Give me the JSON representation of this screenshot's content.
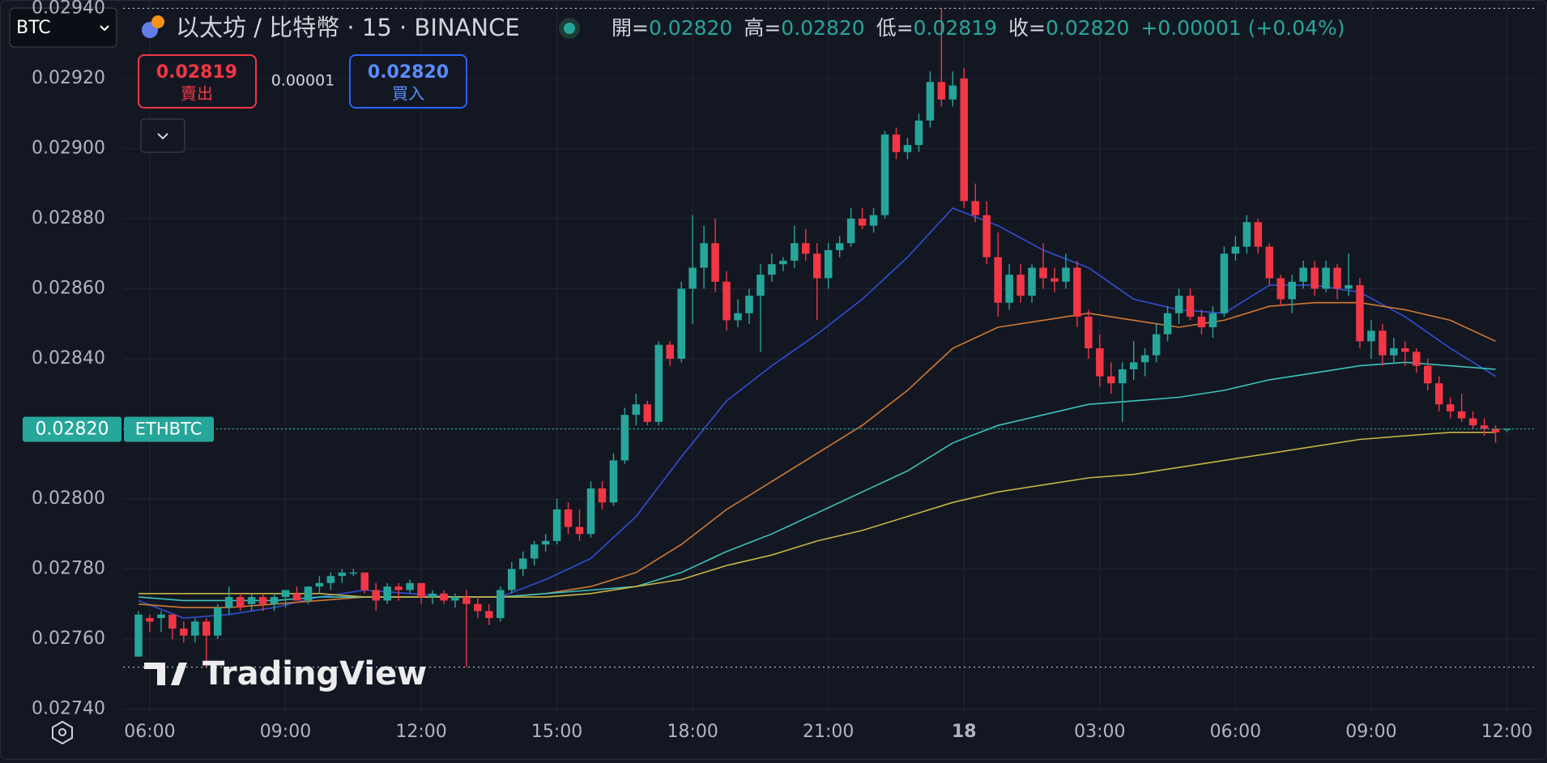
{
  "header": {
    "symbol": "BTC",
    "title": "以太坊 / 比特幣 · 15 · BINANCE",
    "legend": [
      {
        "label": "開=",
        "value": "0.02820"
      },
      {
        "label": "高=",
        "value": "0.02820"
      },
      {
        "label": "低=",
        "value": "0.02819"
      },
      {
        "label": "收=",
        "value": "0.02820"
      }
    ],
    "change": "+0.00001 (+0.04%)"
  },
  "trade": {
    "sell_price": "0.02819",
    "sell_label": "賣出",
    "spread": "0.00001",
    "buy_price": "0.02820",
    "buy_label": "買入"
  },
  "watermark": "TradingView",
  "chart_data": {
    "type": "candlestick",
    "up_color": "#26a69a",
    "down_color": "#f23645",
    "grid": true,
    "ylim": [
      0.027392,
      0.029424
    ],
    "yticks": [
      {
        "value": 0.0294,
        "label": "0.02940"
      },
      {
        "value": 0.0292,
        "label": "0.02920"
      },
      {
        "value": 0.029,
        "label": "0.02900"
      },
      {
        "value": 0.0288,
        "label": "0.02880"
      },
      {
        "value": 0.0286,
        "label": "0.02860"
      },
      {
        "value": 0.0284,
        "label": "0.02840"
      },
      {
        "value": 0.0282,
        "label": "0.02820"
      },
      {
        "value": 0.028,
        "label": "0.02800"
      },
      {
        "value": 0.0278,
        "label": "0.02780"
      },
      {
        "value": 0.0276,
        "label": "0.02760"
      },
      {
        "value": 0.0274,
        "label": "0.02740"
      }
    ],
    "xlim": [
      -1.36,
      123.4
    ],
    "xticks": [
      {
        "value": 1,
        "label": "06:00"
      },
      {
        "value": 13,
        "label": "09:00"
      },
      {
        "value": 25,
        "label": "12:00"
      },
      {
        "value": 37,
        "label": "15:00"
      },
      {
        "value": 49,
        "label": "18:00"
      },
      {
        "value": 61,
        "label": "21:00"
      },
      {
        "value": 73,
        "label": "18",
        "bold": true
      },
      {
        "value": 85,
        "label": "03:00"
      },
      {
        "value": 97,
        "label": "06:00"
      },
      {
        "value": 109,
        "label": "09:00"
      },
      {
        "value": 121,
        "label": "12:00"
      }
    ],
    "x": [
      0,
      1,
      2,
      3,
      4,
      5,
      6,
      7,
      8,
      9,
      10,
      11,
      12,
      13,
      14,
      15,
      16,
      17,
      18,
      19,
      20,
      21,
      22,
      23,
      24,
      25,
      26,
      27,
      28,
      29,
      30,
      31,
      32,
      33,
      34,
      35,
      36,
      37,
      38,
      39,
      40,
      41,
      42,
      43,
      44,
      45,
      46,
      47,
      48,
      49,
      50,
      51,
      52,
      53,
      54,
      55,
      56,
      57,
      58,
      59,
      60,
      61,
      62,
      63,
      64,
      65,
      66,
      67,
      68,
      69,
      70,
      71,
      72,
      73,
      74,
      75,
      76,
      77,
      78,
      79,
      80,
      81,
      82,
      83,
      84,
      85,
      86,
      87,
      88,
      89,
      90,
      91,
      92,
      93,
      94,
      95,
      96,
      97,
      98,
      99,
      100,
      101,
      102,
      103,
      104,
      105,
      106,
      107,
      108,
      109,
      110,
      111,
      112,
      113,
      114,
      115,
      116,
      117,
      118,
      119,
      120,
      121
    ],
    "ohlc": [
      [
        0.02755,
        0.02768,
        0.02755,
        0.02767
      ],
      [
        0.02766,
        0.02767,
        0.02762,
        0.02765
      ],
      [
        0.02766,
        0.02768,
        0.02762,
        0.02767
      ],
      [
        0.02767,
        0.02767,
        0.0276,
        0.02763
      ],
      [
        0.02763,
        0.02765,
        0.02759,
        0.02761
      ],
      [
        0.02761,
        0.02766,
        0.02759,
        0.02765
      ],
      [
        0.02765,
        0.02766,
        0.02752,
        0.02761
      ],
      [
        0.02761,
        0.0277,
        0.0276,
        0.02769
      ],
      [
        0.02769,
        0.02775,
        0.02767,
        0.02772
      ],
      [
        0.02772,
        0.02773,
        0.02768,
        0.02769
      ],
      [
        0.0277,
        0.02773,
        0.02768,
        0.02772
      ],
      [
        0.02772,
        0.02773,
        0.02768,
        0.0277
      ],
      [
        0.0277,
        0.02773,
        0.02768,
        0.02772
      ],
      [
        0.02772,
        0.02774,
        0.02769,
        0.02774
      ],
      [
        0.02773,
        0.02775,
        0.02771,
        0.02771
      ],
      [
        0.02771,
        0.02775,
        0.0277,
        0.02775
      ],
      [
        0.02775,
        0.02778,
        0.02773,
        0.02776
      ],
      [
        0.02776,
        0.02779,
        0.02774,
        0.02778
      ],
      [
        0.02778,
        0.0278,
        0.02776,
        0.02779
      ],
      [
        0.02779,
        0.0278,
        0.02778,
        0.02779
      ],
      [
        0.02779,
        0.02779,
        0.02773,
        0.02774
      ],
      [
        0.02774,
        0.02776,
        0.02768,
        0.02771
      ],
      [
        0.02771,
        0.02776,
        0.0277,
        0.02775
      ],
      [
        0.02775,
        0.02776,
        0.02771,
        0.02774
      ],
      [
        0.02774,
        0.02777,
        0.02773,
        0.02776
      ],
      [
        0.02776,
        0.02776,
        0.0277,
        0.02772
      ],
      [
        0.02772,
        0.02774,
        0.0277,
        0.02773
      ],
      [
        0.02773,
        0.02774,
        0.0277,
        0.02771
      ],
      [
        0.02771,
        0.02773,
        0.02769,
        0.02772
      ],
      [
        0.02772,
        0.02774,
        0.02752,
        0.0277
      ],
      [
        0.0277,
        0.02772,
        0.02766,
        0.02768
      ],
      [
        0.02768,
        0.0277,
        0.02764,
        0.02766
      ],
      [
        0.02766,
        0.02775,
        0.02765,
        0.02774
      ],
      [
        0.02774,
        0.02782,
        0.02773,
        0.0278
      ],
      [
        0.0278,
        0.02785,
        0.02778,
        0.02783
      ],
      [
        0.02783,
        0.02788,
        0.02781,
        0.02787
      ],
      [
        0.02787,
        0.0279,
        0.02785,
        0.02788
      ],
      [
        0.02788,
        0.028,
        0.02787,
        0.02797
      ],
      [
        0.02797,
        0.02799,
        0.0279,
        0.02792
      ],
      [
        0.02792,
        0.02797,
        0.02788,
        0.0279
      ],
      [
        0.0279,
        0.02805,
        0.02789,
        0.02803
      ],
      [
        0.02803,
        0.02805,
        0.02797,
        0.02799
      ],
      [
        0.02799,
        0.02813,
        0.02798,
        0.02811
      ],
      [
        0.02811,
        0.02826,
        0.0281,
        0.02824
      ],
      [
        0.02824,
        0.0283,
        0.02821,
        0.02827
      ],
      [
        0.02827,
        0.02828,
        0.02821,
        0.02822
      ],
      [
        0.02822,
        0.02845,
        0.02821,
        0.02844
      ],
      [
        0.02844,
        0.02845,
        0.02838,
        0.0284
      ],
      [
        0.0284,
        0.02862,
        0.02839,
        0.0286
      ],
      [
        0.0286,
        0.02881,
        0.0285,
        0.02866
      ],
      [
        0.02866,
        0.02878,
        0.0286,
        0.02873
      ],
      [
        0.02873,
        0.0288,
        0.02859,
        0.02862
      ],
      [
        0.02862,
        0.02865,
        0.02848,
        0.02851
      ],
      [
        0.02851,
        0.02857,
        0.02849,
        0.02853
      ],
      [
        0.02853,
        0.0286,
        0.0285,
        0.02858
      ],
      [
        0.02858,
        0.02867,
        0.02842,
        0.02864
      ],
      [
        0.02864,
        0.0287,
        0.02862,
        0.02867
      ],
      [
        0.02867,
        0.02869,
        0.02865,
        0.02868
      ],
      [
        0.02868,
        0.02878,
        0.02866,
        0.02873
      ],
      [
        0.02873,
        0.02877,
        0.02868,
        0.0287
      ],
      [
        0.0287,
        0.02873,
        0.02851,
        0.02863
      ],
      [
        0.02863,
        0.02873,
        0.0286,
        0.02871
      ],
      [
        0.02871,
        0.02875,
        0.02869,
        0.02873
      ],
      [
        0.02873,
        0.02883,
        0.02872,
        0.0288
      ],
      [
        0.0288,
        0.02883,
        0.02877,
        0.02878
      ],
      [
        0.02878,
        0.02883,
        0.02876,
        0.02881
      ],
      [
        0.02881,
        0.02905,
        0.0288,
        0.02904
      ],
      [
        0.02904,
        0.02906,
        0.02897,
        0.02899
      ],
      [
        0.02899,
        0.02903,
        0.02897,
        0.02901
      ],
      [
        0.02901,
        0.0291,
        0.02899,
        0.02908
      ],
      [
        0.02908,
        0.02922,
        0.02906,
        0.02919
      ],
      [
        0.02919,
        0.0294,
        0.02912,
        0.02914
      ],
      [
        0.02914,
        0.02922,
        0.02912,
        0.02918
      ],
      [
        0.0292,
        0.02923,
        0.02883,
        0.02885
      ],
      [
        0.02885,
        0.0289,
        0.02879,
        0.02881
      ],
      [
        0.02881,
        0.02885,
        0.02867,
        0.02869
      ],
      [
        0.02869,
        0.02876,
        0.02852,
        0.02856
      ],
      [
        0.02856,
        0.02867,
        0.02854,
        0.02864
      ],
      [
        0.02864,
        0.02867,
        0.02856,
        0.02858
      ],
      [
        0.02858,
        0.02867,
        0.02856,
        0.02866
      ],
      [
        0.02866,
        0.02873,
        0.0286,
        0.02863
      ],
      [
        0.02863,
        0.02866,
        0.02859,
        0.02862
      ],
      [
        0.02862,
        0.0287,
        0.0286,
        0.02866
      ],
      [
        0.02866,
        0.02868,
        0.02849,
        0.02852
      ],
      [
        0.02852,
        0.02854,
        0.0284,
        0.02843
      ],
      [
        0.02843,
        0.02847,
        0.02832,
        0.02835
      ],
      [
        0.02835,
        0.02839,
        0.0283,
        0.02833
      ],
      [
        0.02833,
        0.02839,
        0.02822,
        0.02837
      ],
      [
        0.02837,
        0.02845,
        0.02834,
        0.02839
      ],
      [
        0.02839,
        0.02843,
        0.02835,
        0.02841
      ],
      [
        0.02841,
        0.0285,
        0.02839,
        0.02847
      ],
      [
        0.02847,
        0.02855,
        0.02845,
        0.02853
      ],
      [
        0.02853,
        0.0286,
        0.0285,
        0.02858
      ],
      [
        0.02858,
        0.0286,
        0.02851,
        0.02852
      ],
      [
        0.02852,
        0.02854,
        0.02847,
        0.02849
      ],
      [
        0.02849,
        0.02855,
        0.02846,
        0.02853
      ],
      [
        0.02853,
        0.02872,
        0.02852,
        0.0287
      ],
      [
        0.0287,
        0.02875,
        0.02868,
        0.02872
      ],
      [
        0.02872,
        0.02881,
        0.0287,
        0.02879
      ],
      [
        0.02879,
        0.0288,
        0.0287,
        0.02872
      ],
      [
        0.02872,
        0.02873,
        0.02861,
        0.02863
      ],
      [
        0.02863,
        0.02864,
        0.02855,
        0.02857
      ],
      [
        0.02857,
        0.02864,
        0.02853,
        0.02862
      ],
      [
        0.02862,
        0.02868,
        0.0286,
        0.02866
      ],
      [
        0.02866,
        0.02868,
        0.02858,
        0.0286
      ],
      [
        0.0286,
        0.02868,
        0.02859,
        0.02866
      ],
      [
        0.02866,
        0.02867,
        0.02857,
        0.0286
      ],
      [
        0.0286,
        0.0287,
        0.02858,
        0.02861
      ],
      [
        0.02861,
        0.02863,
        0.02843,
        0.02845
      ],
      [
        0.02845,
        0.02851,
        0.0284,
        0.02848
      ],
      [
        0.02848,
        0.0285,
        0.02838,
        0.02841
      ],
      [
        0.02841,
        0.02846,
        0.02839,
        0.02843
      ],
      [
        0.02843,
        0.02845,
        0.02838,
        0.02842
      ],
      [
        0.02842,
        0.02843,
        0.02836,
        0.02838
      ],
      [
        0.02838,
        0.0284,
        0.02831,
        0.02833
      ],
      [
        0.02833,
        0.02835,
        0.02825,
        0.02827
      ],
      [
        0.02827,
        0.02829,
        0.02823,
        0.02825
      ],
      [
        0.02825,
        0.0283,
        0.02822,
        0.02823
      ],
      [
        0.02823,
        0.02825,
        0.0282,
        0.02821
      ],
      [
        0.02821,
        0.02823,
        0.02818,
        0.0282
      ],
      [
        0.0282,
        0.02821,
        0.02816,
        0.02819
      ],
      [
        0.0282,
        0.0282,
        0.02819,
        0.0282
      ]
    ],
    "series": [
      {
        "color": "#2f4fd6",
        "x": [
          0,
          4,
          8,
          12,
          16,
          20,
          24,
          28,
          32,
          36,
          40,
          44,
          48,
          52,
          56,
          60,
          64,
          68,
          72,
          76,
          80,
          84,
          88,
          92,
          96,
          100,
          104,
          108,
          112,
          116,
          120
        ],
        "values": [
          0.02771,
          0.02766,
          0.02767,
          0.02769,
          0.02772,
          0.02774,
          0.02773,
          0.02772,
          0.02772,
          0.02777,
          0.02783,
          0.02795,
          0.02812,
          0.02828,
          0.02838,
          0.02847,
          0.02857,
          0.02869,
          0.02883,
          0.02878,
          0.02871,
          0.02866,
          0.02857,
          0.02854,
          0.02853,
          0.02861,
          0.02861,
          0.02859,
          0.02852,
          0.02843,
          0.02835
        ]
      },
      {
        "color": "#d17a32",
        "x": [
          0,
          4,
          8,
          12,
          16,
          20,
          24,
          28,
          32,
          36,
          40,
          44,
          48,
          52,
          56,
          60,
          64,
          68,
          72,
          76,
          80,
          84,
          88,
          92,
          96,
          100,
          104,
          108,
          112,
          116,
          120
        ],
        "values": [
          0.0277,
          0.02769,
          0.02769,
          0.0277,
          0.02771,
          0.02772,
          0.02772,
          0.02772,
          0.02772,
          0.02773,
          0.02775,
          0.02779,
          0.02787,
          0.02797,
          0.02805,
          0.02813,
          0.02821,
          0.02831,
          0.02843,
          0.02849,
          0.02851,
          0.02853,
          0.02851,
          0.02849,
          0.02851,
          0.02855,
          0.02856,
          0.02856,
          0.02854,
          0.02851,
          0.02845
        ]
      },
      {
        "color": "#3cc3bb",
        "x": [
          0,
          4,
          8,
          12,
          16,
          20,
          24,
          28,
          32,
          36,
          40,
          44,
          48,
          52,
          56,
          60,
          64,
          68,
          72,
          76,
          80,
          84,
          88,
          92,
          96,
          100,
          104,
          108,
          112,
          116,
          120
        ],
        "values": [
          0.02772,
          0.02771,
          0.02771,
          0.02771,
          0.02772,
          0.02772,
          0.02772,
          0.02772,
          0.02772,
          0.02773,
          0.02774,
          0.02775,
          0.02779,
          0.02785,
          0.0279,
          0.02796,
          0.02802,
          0.02808,
          0.02816,
          0.02821,
          0.02824,
          0.02827,
          0.02828,
          0.02829,
          0.02831,
          0.02834,
          0.02836,
          0.02838,
          0.02839,
          0.02838,
          0.02837
        ]
      },
      {
        "color": "#c4b443",
        "x": [
          0,
          4,
          8,
          12,
          16,
          20,
          24,
          28,
          32,
          36,
          40,
          44,
          48,
          52,
          56,
          60,
          64,
          68,
          72,
          76,
          80,
          84,
          88,
          92,
          96,
          100,
          104,
          108,
          112,
          116,
          120
        ],
        "values": [
          0.02773,
          0.02773,
          0.02773,
          0.02773,
          0.02773,
          0.02772,
          0.02772,
          0.02772,
          0.02772,
          0.02772,
          0.02773,
          0.02775,
          0.02777,
          0.02781,
          0.02784,
          0.02788,
          0.02791,
          0.02795,
          0.02799,
          0.02802,
          0.02804,
          0.02806,
          0.02807,
          0.02809,
          0.02811,
          0.02813,
          0.02815,
          0.02817,
          0.02818,
          0.02819,
          0.02819
        ]
      }
    ],
    "range_lines": [
      0.0294,
      0.02752
    ],
    "last_price": {
      "value": 0.0282,
      "label": "0.02820"
    },
    "symbol_tag": "ETHBTC"
  }
}
